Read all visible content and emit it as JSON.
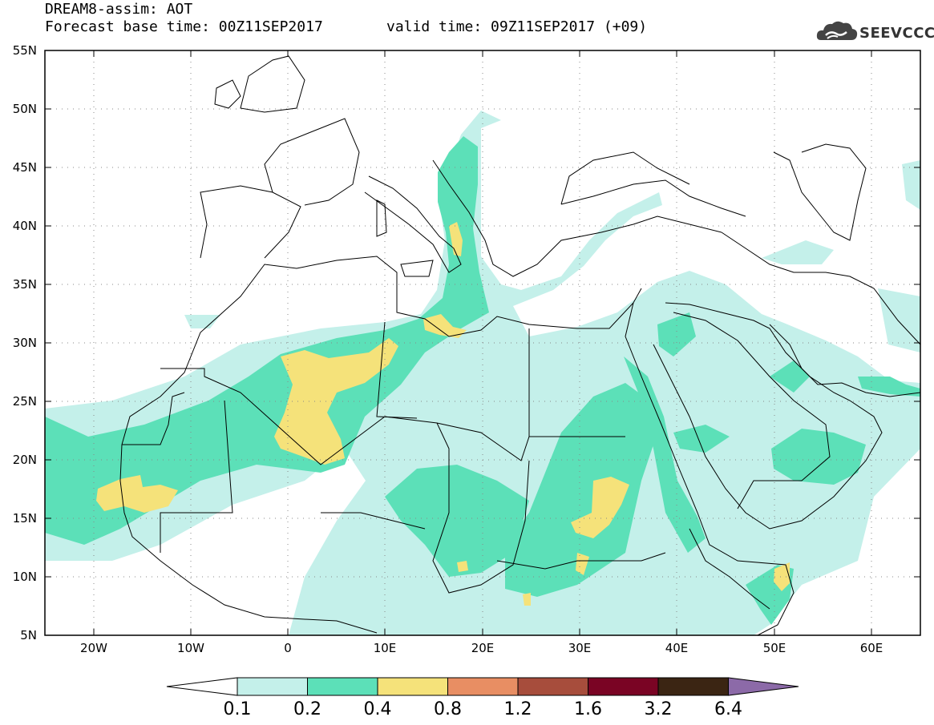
{
  "header": {
    "model_title": "DREAM8-assim: AOT",
    "base_time": "Forecast base time: 00Z11SEP2017",
    "valid_time": "valid time: 09Z11SEP2017 (+09)",
    "logo_text": "SEEVCCC"
  },
  "map": {
    "lon_range": [
      -25,
      65
    ],
    "lat_range": [
      5,
      55
    ],
    "lat_labels": [
      "55N",
      "50N",
      "45N",
      "40N",
      "35N",
      "30N",
      "25N",
      "20N",
      "15N",
      "10N",
      "5N"
    ],
    "lon_labels": [
      "20W",
      "10W",
      "0",
      "10E",
      "20E",
      "30E",
      "40E",
      "50E",
      "60E"
    ]
  },
  "colorbar": {
    "levels": [
      "0.1",
      "0.2",
      "0.4",
      "0.8",
      "1.2",
      "1.6",
      "3.2",
      "6.4"
    ],
    "colors": [
      "#ffffff",
      "#c4f0ea",
      "#5ce0b8",
      "#f5e27a",
      "#e88e63",
      "#a74d3c",
      "#7a0424",
      "#3b2513",
      "#8c6aa8"
    ]
  }
}
